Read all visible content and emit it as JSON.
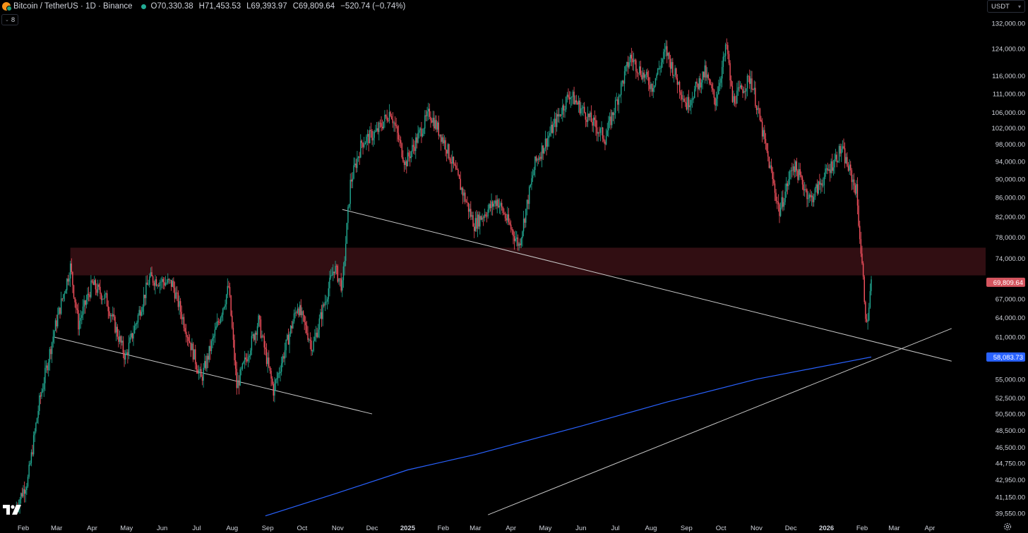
{
  "header": {
    "title": "Bitcoin / TetherUS · 1D · Binance",
    "o_label": "O",
    "o_value": "70,330.38",
    "h_label": "H",
    "h_value": "71,453.53",
    "l_label": "L",
    "l_value": "69,393.97",
    "c_label": "C",
    "c_value": "69,809.64",
    "change": "−520.74 (−0.74%)",
    "collapse_label": "8"
  },
  "unit_label": "USDT",
  "colors": {
    "background": "#000000",
    "up": "#22ab94",
    "down": "#f7525f",
    "ma_line": "#2962ff",
    "price_tag": "#d5555f",
    "ma_tag": "#2962ff",
    "zone": "#3a1015",
    "trendline": "#c8c8c8"
  },
  "chart_data": {
    "type": "candlestick",
    "symbol": "Bitcoin / TetherUS",
    "interval": "1D",
    "exchange": "Binance",
    "y_ticks": [
      "132,000.00",
      "124,000.00",
      "116,000.00",
      "111,000.00",
      "106,000.00",
      "102,000.00",
      "98,000.00",
      "94,000.00",
      "90,000.00",
      "86,000.00",
      "82,000.00",
      "78,000.00",
      "74,000.00",
      "67,000.00",
      "64,000.00",
      "61,000.00",
      "55,000.00",
      "52,500.00",
      "50,500.00",
      "48,500.00",
      "46,500.00",
      "44,750.00",
      "42,950.00",
      "41,150.00",
      "39,550.00"
    ],
    "x_ticks": [
      "Feb",
      "Mar",
      "Apr",
      "May",
      "Jun",
      "Jul",
      "Aug",
      "Sep",
      "Oct",
      "Nov",
      "Dec",
      "2025",
      "Feb",
      "Mar",
      "Apr",
      "May",
      "Jun",
      "Jul",
      "Aug",
      "Sep",
      "Oct",
      "Nov",
      "Dec",
      "2026",
      "Feb",
      "Mar",
      "Apr"
    ],
    "price_path": [
      [
        "2024-01-25",
        40000
      ],
      [
        "2024-02-05",
        43000
      ],
      [
        "2024-02-15",
        52000
      ],
      [
        "2024-02-28",
        62000
      ],
      [
        "2024-03-13",
        72500
      ],
      [
        "2024-03-20",
        63000
      ],
      [
        "2024-04-01",
        69500
      ],
      [
        "2024-04-13",
        67000
      ],
      [
        "2024-04-30",
        58000
      ],
      [
        "2024-05-21",
        70500
      ],
      [
        "2024-06-10",
        69500
      ],
      [
        "2024-07-05",
        55000
      ],
      [
        "2024-07-29",
        69000
      ],
      [
        "2024-08-05",
        54000
      ],
      [
        "2024-08-24",
        63500
      ],
      [
        "2024-09-06",
        53500
      ],
      [
        "2024-09-27",
        66000
      ],
      [
        "2024-10-10",
        59500
      ],
      [
        "2024-10-29",
        72500
      ],
      [
        "2024-11-05",
        69000
      ],
      [
        "2024-11-12",
        89000
      ],
      [
        "2024-11-22",
        98500
      ],
      [
        "2024-12-05",
        101000
      ],
      [
        "2024-12-17",
        106500
      ],
      [
        "2024-12-30",
        93500
      ],
      [
        "2025-01-20",
        106000
      ],
      [
        "2025-02-03",
        98000
      ],
      [
        "2025-02-28",
        80500
      ],
      [
        "2025-03-20",
        85500
      ],
      [
        "2025-04-08",
        76500
      ],
      [
        "2025-04-22",
        93500
      ],
      [
        "2025-05-22",
        111000
      ],
      [
        "2025-06-22",
        99500
      ],
      [
        "2025-07-14",
        121500
      ],
      [
        "2025-08-02",
        113000
      ],
      [
        "2025-08-14",
        123500
      ],
      [
        "2025-09-01",
        108000
      ],
      [
        "2025-09-17",
        117000
      ],
      [
        "2025-09-26",
        109000
      ],
      [
        "2025-10-06",
        125000
      ],
      [
        "2025-10-11",
        109000
      ],
      [
        "2025-10-27",
        115500
      ],
      [
        "2025-11-21",
        83000
      ],
      [
        "2025-12-03",
        93500
      ],
      [
        "2025-12-18",
        85500
      ],
      [
        "2026-01-14",
        97000
      ],
      [
        "2026-01-27",
        87500
      ],
      [
        "2026-02-05",
        62500
      ],
      [
        "2026-02-09",
        69809.64
      ]
    ],
    "moving_average": {
      "last_value": 58083.73,
      "path": [
        [
          "2024-08-30",
          39300
        ],
        [
          "2024-10-30",
          41500
        ],
        [
          "2025-01-01",
          44000
        ],
        [
          "2025-03-01",
          45700
        ],
        [
          "2025-06-01",
          49000
        ],
        [
          "2025-08-15",
          52000
        ],
        [
          "2025-11-01",
          55000
        ],
        [
          "2026-02-09",
          58083.73
        ]
      ]
    },
    "last_price": 69809.64,
    "last_price_label": "69,809.64",
    "ma_label": "58,083.73",
    "resistance_zone": {
      "low": 71000,
      "high": 76000,
      "from": "2024-03-13"
    },
    "trendlines": [
      {
        "from": [
          "2024-02-28",
          61000
        ],
        "to": [
          "2024-12-01",
          50500
        ]
      },
      {
        "from": [
          "2024-11-05",
          83500
        ],
        "to": [
          "2026-04-20",
          57500
        ]
      },
      {
        "from": [
          "2025-03-12",
          39400
        ],
        "to": [
          "2026-04-20",
          62300
        ]
      }
    ],
    "grid": false
  }
}
